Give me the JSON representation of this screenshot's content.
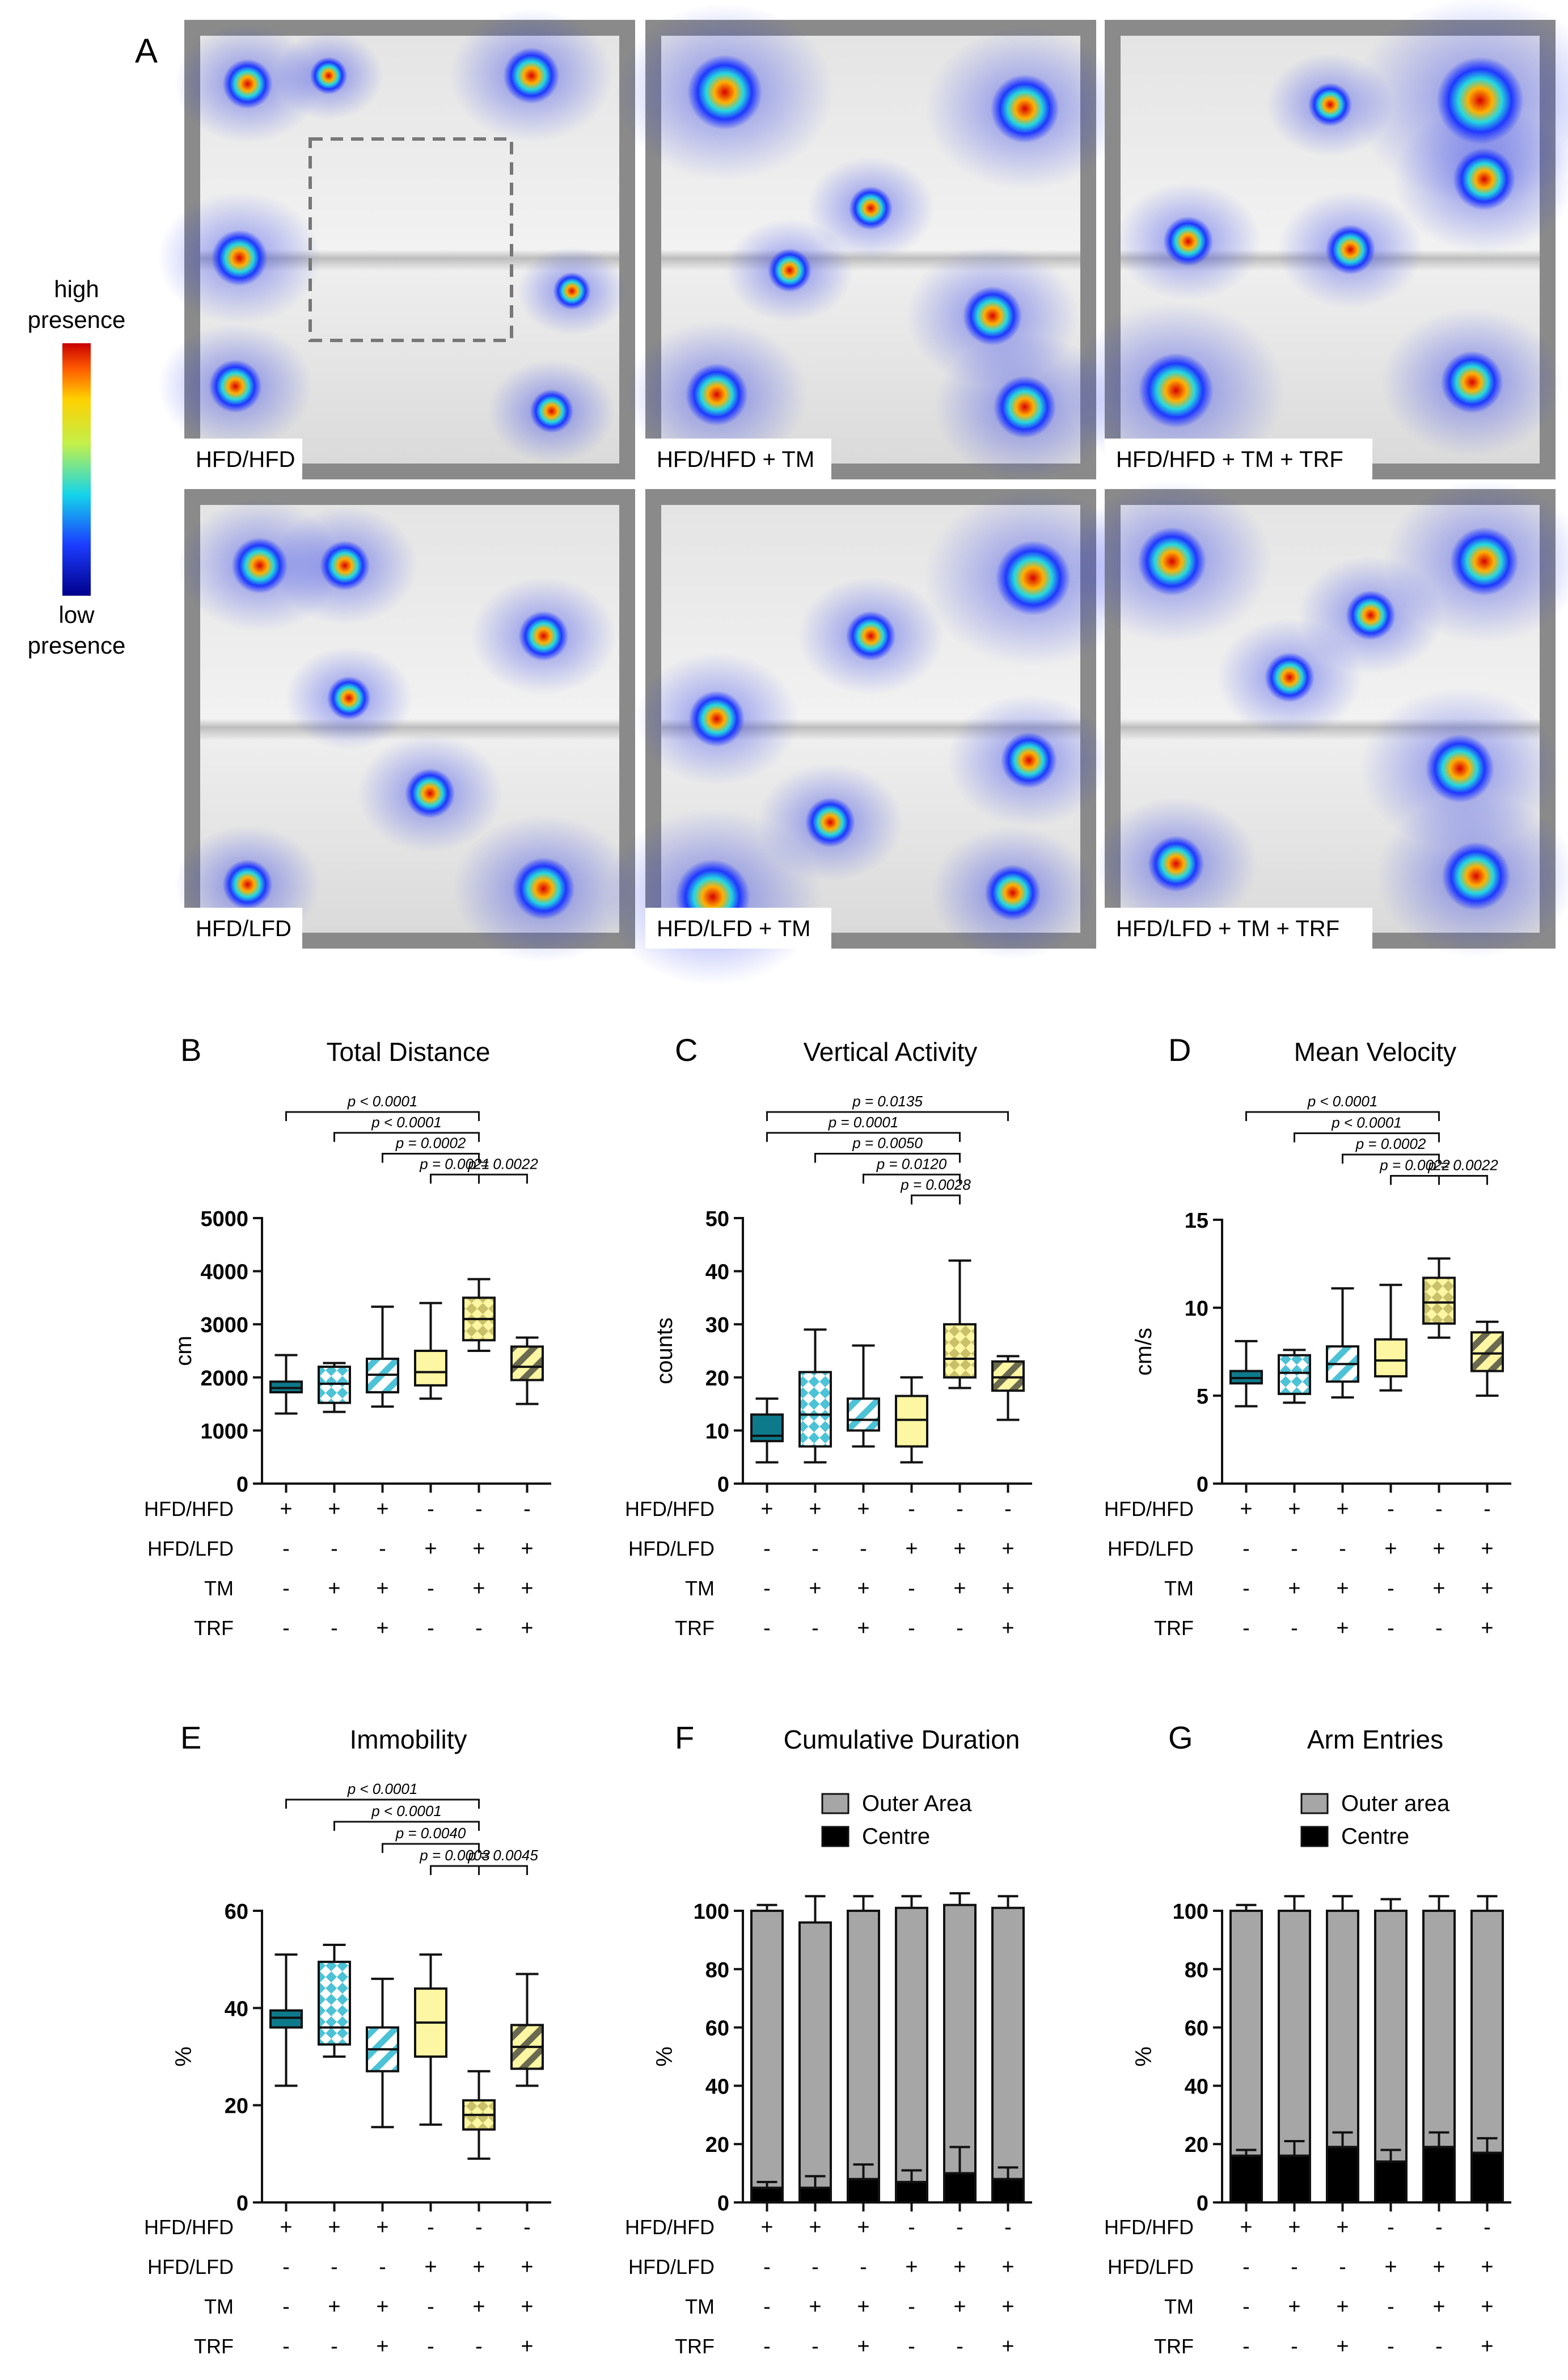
{
  "panel_letters": {
    "A": "A",
    "B": "B",
    "C": "C",
    "D": "D",
    "E": "E",
    "F": "F",
    "G": "G"
  },
  "colors": {
    "teal": "#0d7a8c",
    "teal_light": "#4cc2d6",
    "yellow": "#fdf6a2",
    "olive": "#c7c27a",
    "gray": "#a6a6a6",
    "black": "#000000"
  },
  "heatmap_legend": {
    "high": [
      "high",
      "presence"
    ],
    "low": [
      "low",
      "presence"
    ]
  },
  "heatmaps": [
    {
      "label": "HFD/HFD"
    },
    {
      "label": "HFD/HFD + TM"
    },
    {
      "label": "HFD/HFD + TM + TRF"
    },
    {
      "label": "HFD/LFD"
    },
    {
      "label": "HFD/LFD + TM"
    },
    {
      "label": "HFD/LFD + TM + TRF"
    }
  ],
  "design_rows": {
    "labels": [
      "HFD/HFD",
      "HFD/LFD",
      "TM",
      "TRF"
    ],
    "marks": [
      [
        "+",
        "+",
        "+",
        "-",
        "-",
        "-"
      ],
      [
        "-",
        "-",
        "-",
        "+",
        "+",
        "+"
      ],
      [
        "-",
        "+",
        "+",
        "-",
        "+",
        "+"
      ],
      [
        "-",
        "-",
        "+",
        "-",
        "-",
        "+"
      ]
    ]
  },
  "chart_data": [
    {
      "id": "B",
      "type": "box",
      "title": "Total Distance",
      "ylabel": "cm",
      "ylim": [
        0,
        5000
      ],
      "yticks": [
        0,
        1000,
        2000,
        3000,
        4000,
        5000
      ],
      "boxes": [
        {
          "min": 1320,
          "q1": 1720,
          "median": 1800,
          "q3": 1920,
          "max": 2420
        },
        {
          "min": 1350,
          "q1": 1520,
          "median": 1880,
          "q3": 2200,
          "max": 2270
        },
        {
          "min": 1450,
          "q1": 1720,
          "median": 2050,
          "q3": 2350,
          "max": 3330
        },
        {
          "min": 1600,
          "q1": 1850,
          "median": 2100,
          "q3": 2500,
          "max": 3400
        },
        {
          "min": 2500,
          "q1": 2700,
          "median": 3100,
          "q3": 3500,
          "max": 3850
        },
        {
          "min": 1500,
          "q1": 1950,
          "median": 2200,
          "q3": 2580,
          "max": 2750
        }
      ],
      "brackets": [
        {
          "from": 0,
          "to": 4,
          "label": "p < 0.0001"
        },
        {
          "from": 1,
          "to": 4,
          "label": "p < 0.0001"
        },
        {
          "from": 2,
          "to": 4,
          "label": "p = 0.0002"
        },
        {
          "from": 3,
          "to": 4,
          "label": "p = 0.0021"
        },
        {
          "from": 4,
          "to": 5,
          "label": "p = 0.0022"
        }
      ]
    },
    {
      "id": "C",
      "type": "box",
      "title": "Vertical Activity",
      "ylabel": "counts",
      "ylim": [
        0,
        50
      ],
      "yticks": [
        0,
        10,
        20,
        30,
        40,
        50
      ],
      "boxes": [
        {
          "min": 4,
          "q1": 8,
          "median": 9,
          "q3": 13,
          "max": 16
        },
        {
          "min": 4,
          "q1": 7,
          "median": 13,
          "q3": 21,
          "max": 29
        },
        {
          "min": 7,
          "q1": 10,
          "median": 12,
          "q3": 16,
          "max": 26
        },
        {
          "min": 4,
          "q1": 7,
          "median": 12,
          "q3": 16.5,
          "max": 20
        },
        {
          "min": 18,
          "q1": 20,
          "median": 23.5,
          "q3": 30,
          "max": 42
        },
        {
          "min": 12,
          "q1": 17.5,
          "median": 20,
          "q3": 23,
          "max": 24
        }
      ],
      "brackets": [
        {
          "from": 0,
          "to": 5,
          "label": "p = 0.0135"
        },
        {
          "from": 0,
          "to": 4,
          "label": "p = 0.0001"
        },
        {
          "from": 1,
          "to": 4,
          "label": "p = 0.0050"
        },
        {
          "from": 2,
          "to": 4,
          "label": "p = 0.0120"
        },
        {
          "from": 3,
          "to": 4,
          "label": "p = 0.0028"
        }
      ]
    },
    {
      "id": "D",
      "type": "box",
      "title": "Mean Velocity",
      "ylabel": "cm/s",
      "ylim": [
        0,
        15
      ],
      "yticks": [
        0,
        5,
        10,
        15
      ],
      "boxes": [
        {
          "min": 4.4,
          "q1": 5.7,
          "median": 6.0,
          "q3": 6.4,
          "max": 8.1
        },
        {
          "min": 4.6,
          "q1": 5.1,
          "median": 6.3,
          "q3": 7.3,
          "max": 7.6
        },
        {
          "min": 4.9,
          "q1": 5.8,
          "median": 6.8,
          "q3": 7.8,
          "max": 11.1
        },
        {
          "min": 5.3,
          "q1": 6.1,
          "median": 7.0,
          "q3": 8.2,
          "max": 11.3
        },
        {
          "min": 8.3,
          "q1": 9.1,
          "median": 10.3,
          "q3": 11.7,
          "max": 12.8
        },
        {
          "min": 5.0,
          "q1": 6.4,
          "median": 7.4,
          "q3": 8.6,
          "max": 9.2
        }
      ],
      "brackets": [
        {
          "from": 0,
          "to": 4,
          "label": "p < 0.0001"
        },
        {
          "from": 1,
          "to": 4,
          "label": "p < 0.0001"
        },
        {
          "from": 2,
          "to": 4,
          "label": "p = 0.0002"
        },
        {
          "from": 3,
          "to": 4,
          "label": "p = 0.0022"
        },
        {
          "from": 4,
          "to": 5,
          "label": "p = 0.0022"
        }
      ]
    },
    {
      "id": "E",
      "type": "box",
      "title": "Immobility",
      "ylabel": "%",
      "ylim": [
        0,
        60
      ],
      "yticks": [
        0,
        20,
        40,
        60
      ],
      "boxes": [
        {
          "min": 24,
          "q1": 36,
          "median": 38,
          "q3": 39.5,
          "max": 51
        },
        {
          "min": 30,
          "q1": 32.5,
          "median": 36,
          "q3": 49.5,
          "max": 53
        },
        {
          "min": 15.5,
          "q1": 27,
          "median": 31.5,
          "q3": 36,
          "max": 46
        },
        {
          "min": 16,
          "q1": 30,
          "median": 37,
          "q3": 44,
          "max": 51
        },
        {
          "min": 9,
          "q1": 15,
          "median": 18,
          "q3": 21,
          "max": 27
        },
        {
          "min": 24,
          "q1": 27.5,
          "median": 32,
          "q3": 36.5,
          "max": 47
        }
      ],
      "brackets": [
        {
          "from": 0,
          "to": 4,
          "label": "p < 0.0001"
        },
        {
          "from": 1,
          "to": 4,
          "label": "p < 0.0001"
        },
        {
          "from": 2,
          "to": 4,
          "label": "p = 0.0040"
        },
        {
          "from": 3,
          "to": 4,
          "label": "p = 0.0003"
        },
        {
          "from": 4,
          "to": 5,
          "label": "p = 0.0045"
        }
      ]
    },
    {
      "id": "F",
      "type": "stacked-bar",
      "title": "Cumulative Duration",
      "ylabel": "%",
      "ylim": [
        0,
        100
      ],
      "yticks": [
        0,
        20,
        40,
        60,
        80,
        100
      ],
      "legend": [
        "Outer Area",
        "Centre"
      ],
      "centre": [
        5,
        5,
        8,
        7,
        10,
        8
      ],
      "centre_err": [
        2,
        4,
        5,
        4,
        9,
        4
      ],
      "total": [
        100,
        96,
        100,
        101,
        102,
        101
      ],
      "total_err": [
        2,
        9,
        5,
        4,
        4,
        4
      ]
    },
    {
      "id": "G",
      "type": "stacked-bar",
      "title": "Arm Entries",
      "ylabel": "%",
      "ylim": [
        0,
        100
      ],
      "yticks": [
        0,
        20,
        40,
        60,
        80,
        100
      ],
      "legend": [
        "Outer area",
        "Centre"
      ],
      "centre": [
        16,
        16,
        19,
        14,
        19,
        17
      ],
      "centre_err": [
        2,
        5,
        5,
        4,
        5,
        5
      ],
      "total": [
        100,
        100,
        100,
        100,
        100,
        100
      ],
      "total_err": [
        2,
        5,
        5,
        4,
        5,
        5
      ]
    }
  ]
}
